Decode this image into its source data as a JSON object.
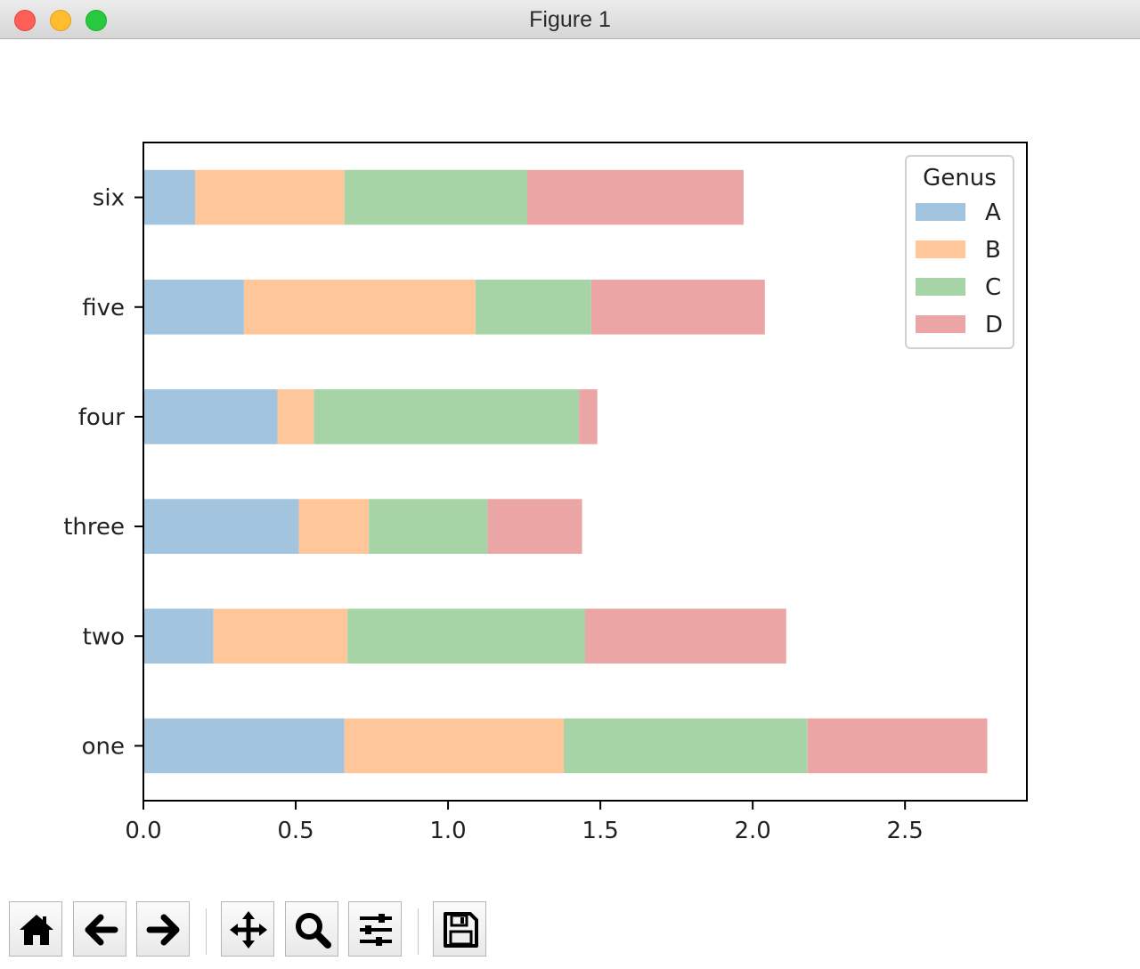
{
  "window": {
    "title": "Figure 1"
  },
  "chart_data": {
    "type": "bar",
    "orientation": "horizontal",
    "stacked": true,
    "categories": [
      "one",
      "two",
      "three",
      "four",
      "five",
      "six"
    ],
    "series": [
      {
        "name": "A",
        "values": [
          0.66,
          0.23,
          0.51,
          0.44,
          0.33,
          0.17
        ],
        "color": "#a2c4de"
      },
      {
        "name": "B",
        "values": [
          0.72,
          0.44,
          0.23,
          0.12,
          0.76,
          0.49
        ],
        "color": "#fec699"
      },
      {
        "name": "C",
        "values": [
          0.8,
          0.78,
          0.39,
          0.87,
          0.38,
          0.6
        ],
        "color": "#a6d4a6"
      },
      {
        "name": "D",
        "values": [
          0.59,
          0.66,
          0.31,
          0.06,
          0.57,
          0.71
        ],
        "color": "#eca5a5"
      }
    ],
    "xlim": [
      0,
      2.9
    ],
    "xticks": [
      "0.0",
      "0.5",
      "1.0",
      "1.5",
      "2.0",
      "2.5"
    ],
    "legend": {
      "title": "Genus",
      "placement": "upper right"
    },
    "grid": false,
    "title": "",
    "xlabel": "",
    "ylabel": ""
  },
  "toolbar": {
    "buttons": [
      {
        "name": "home-button",
        "icon": "home-icon"
      },
      {
        "name": "back-button",
        "icon": "arrow-left-icon"
      },
      {
        "name": "forward-button",
        "icon": "arrow-right-icon"
      },
      {
        "name": "pan-button",
        "icon": "move-icon"
      },
      {
        "name": "zoom-button",
        "icon": "magnifier-icon"
      },
      {
        "name": "configure-subplots-button",
        "icon": "sliders-icon"
      },
      {
        "name": "save-button",
        "icon": "floppy-disk-icon"
      }
    ]
  }
}
